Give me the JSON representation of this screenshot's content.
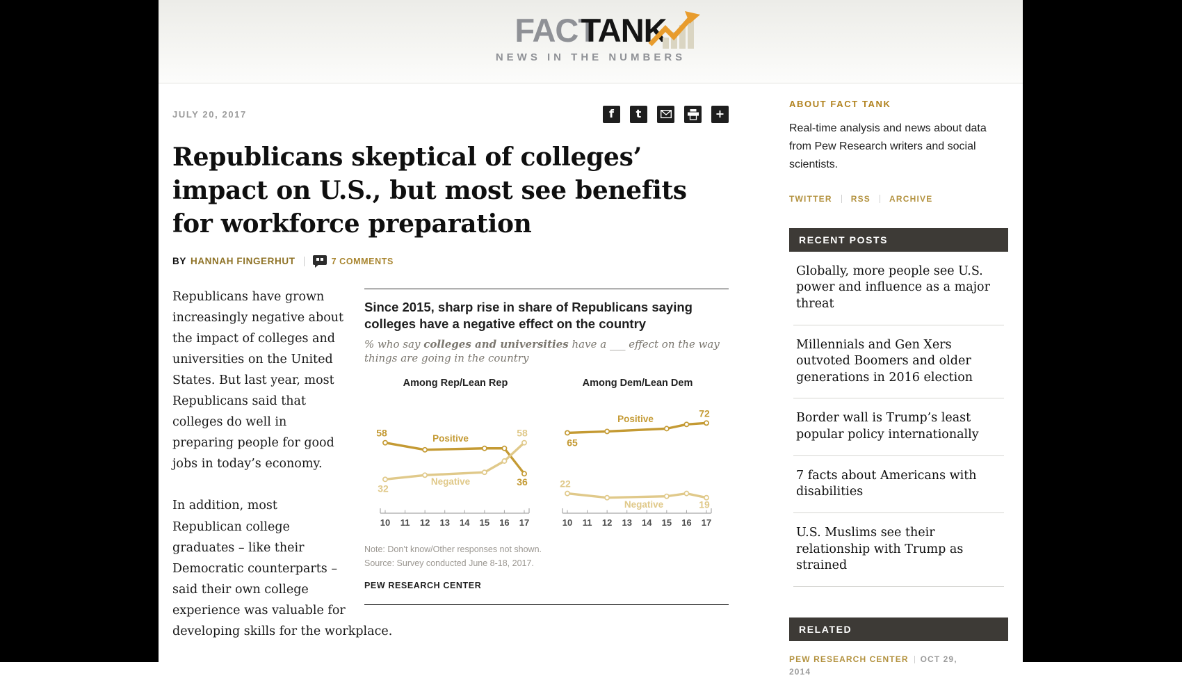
{
  "header": {
    "logo_fact": "FACT",
    "logo_tank": "TANK",
    "tagline": "NEWS IN THE NUMBERS"
  },
  "share": {
    "icons": [
      {
        "name": "facebook",
        "glyph": "f"
      },
      {
        "name": "twitter",
        "glyph": "t"
      },
      {
        "name": "email"
      },
      {
        "name": "print"
      },
      {
        "name": "plus",
        "glyph": "+"
      }
    ]
  },
  "article": {
    "date": "JULY 20, 2017",
    "title": "Republicans skeptical of colleges’ impact on U.S., but most see benefits for workforce preparation",
    "byline_prefix": "BY",
    "author": "HANNAH FINGERHUT",
    "comments_label": "7 COMMENTS",
    "paragraphs": [
      "Republicans have grown increasingly negative about the impact of colleges and universities on the United States. But last year, most Republicans said that colleges do well in preparing people for good jobs in today’s economy.",
      "In addition, most Republican college graduates – like their Democratic counterparts – said their own college experience was valuable for developing skills for the workplace."
    ]
  },
  "chart_data": {
    "type": "line",
    "title": "Since 2015, sharp rise in share of Republicans saying colleges have a negative effect on the country",
    "subtitle_prefix": "% who say ",
    "subtitle_bold": "colleges and universities",
    "subtitle_suffix": " have a ___ effect on the way things are going in the country",
    "x": [
      2010,
      2012,
      2015,
      2016,
      2017
    ],
    "x_ticks": [
      "10",
      "11",
      "12",
      "13",
      "14",
      "15",
      "16",
      "17"
    ],
    "x_range": [
      2010,
      2017
    ],
    "ylim": [
      0,
      100
    ],
    "grid": false,
    "colors": {
      "positive": "#C49A33",
      "negative": "#E0C98A"
    },
    "panels": [
      {
        "title": "Among Rep/Lean Rep",
        "series": [
          {
            "name": "Positive",
            "color": "#C49A33",
            "values": [
              58,
              53,
              54,
              54,
              36
            ]
          },
          {
            "name": "Negative",
            "color": "#E0C98A",
            "values": [
              32,
              35,
              37,
              45,
              58
            ]
          }
        ]
      },
      {
        "title": "Among Dem/Lean Dem",
        "series": [
          {
            "name": "Positive",
            "color": "#C49A33",
            "values": [
              65,
              66,
              68,
              71,
              72
            ]
          },
          {
            "name": "Negative",
            "color": "#E0C98A",
            "values": [
              22,
              19,
              20,
              22,
              19
            ]
          }
        ]
      }
    ],
    "note": "Note: Don’t know/Other responses not shown.",
    "source": "Source: Survey conducted June 8-18, 2017.",
    "brand": "PEW RESEARCH CENTER"
  },
  "sidebar": {
    "about": {
      "title": "ABOUT FACT TANK",
      "text": "Real-time analysis and news about data from Pew Research writers and social scientists.",
      "links": [
        "TWITTER",
        "RSS",
        "ARCHIVE"
      ]
    },
    "recent": {
      "title": "RECENT POSTS",
      "posts": [
        "Globally, more people see U.S. power and influence as a major threat",
        "Millennials and Gen Xers outvoted Boomers and older generations in 2016 election",
        "Border wall is Trump’s least popular policy internationally",
        "7 facts about Americans with disabilities",
        "U.S. Muslims see their relationship with Trump as strained"
      ]
    },
    "related": {
      "title": "RELATED",
      "source": "PEW RESEARCH CENTER",
      "date": "OCT 29, 2014"
    }
  }
}
